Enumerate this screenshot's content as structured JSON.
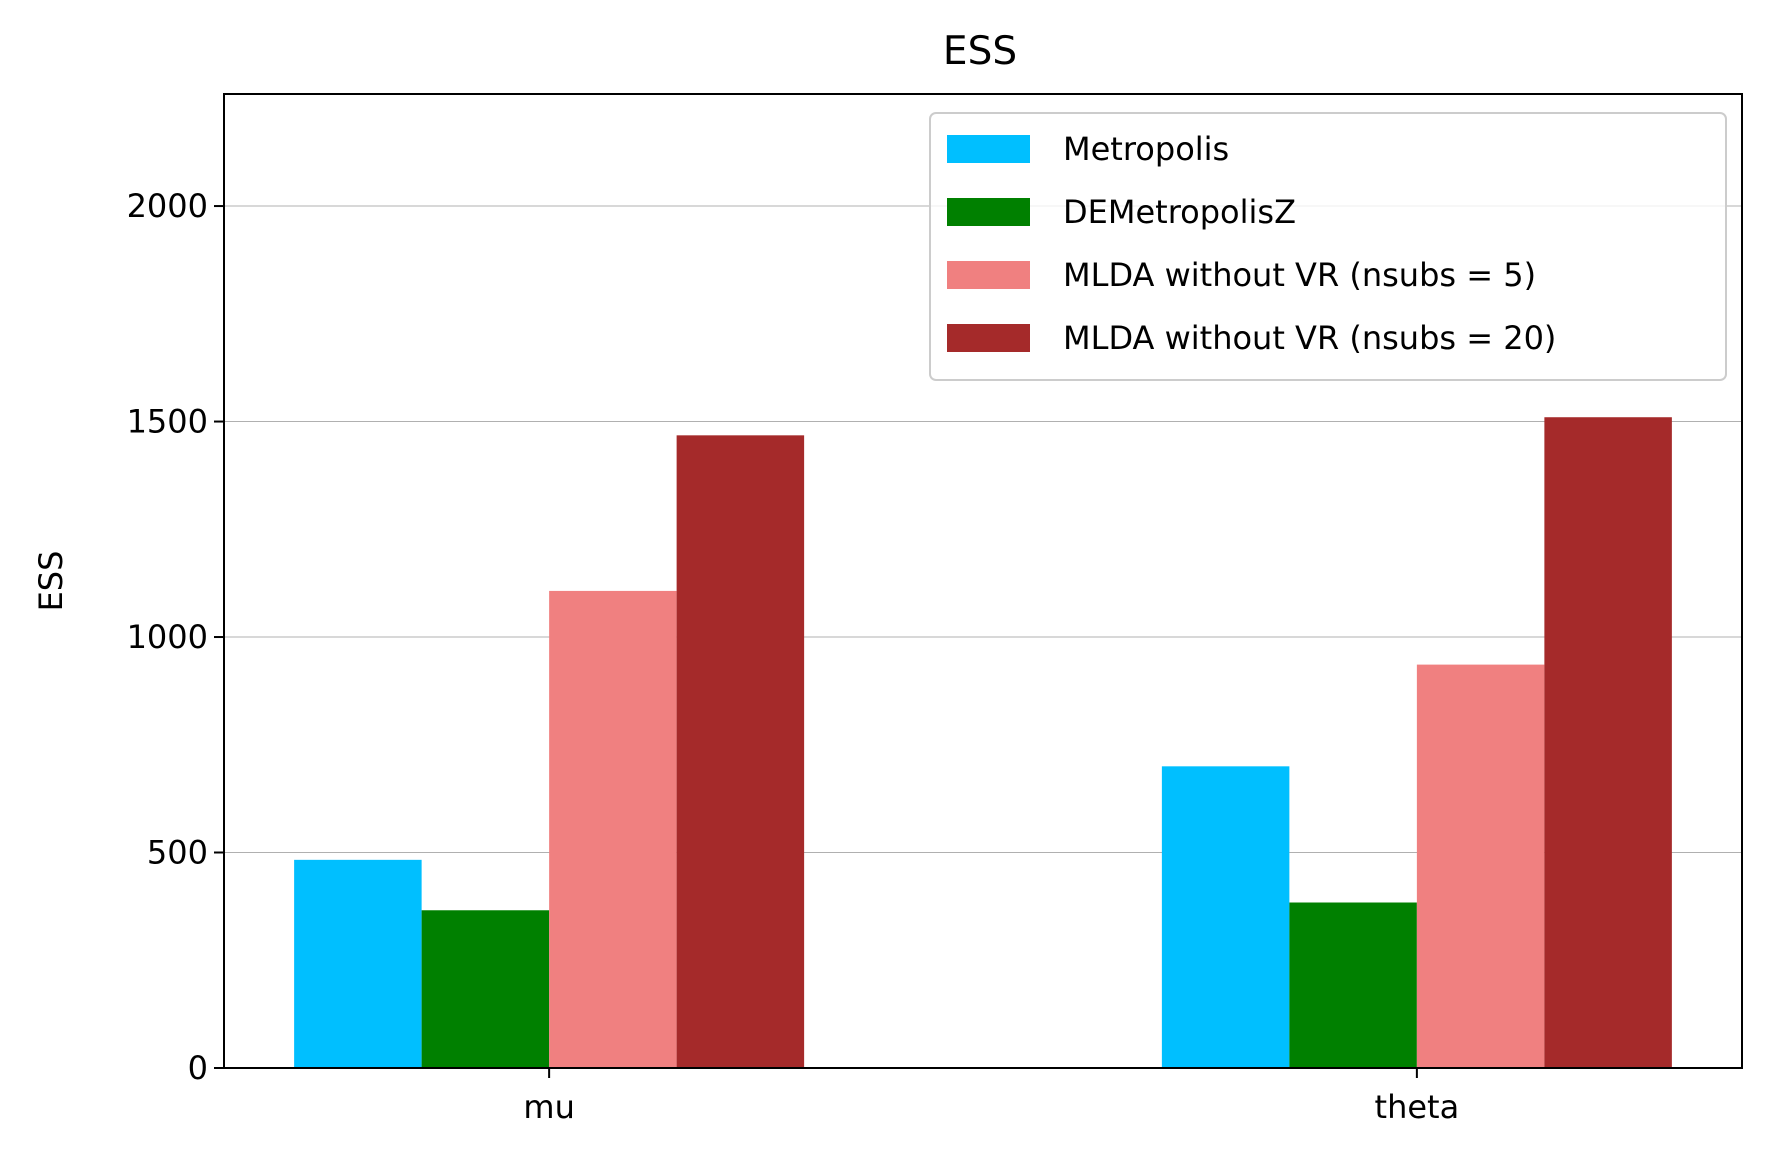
{
  "chart_data": {
    "type": "bar",
    "title": "ESS",
    "xlabel": "",
    "ylabel": "ESS",
    "categories": [
      "mu",
      "theta"
    ],
    "ylim": [
      0,
      2260
    ],
    "yticks": [
      0,
      500,
      1000,
      1500,
      2000
    ],
    "grid": {
      "y": true,
      "x": false
    },
    "legend_position": "top-right",
    "series": [
      {
        "name": "Metropolis",
        "color": "#00BFFF",
        "values": [
          483,
          700
        ]
      },
      {
        "name": "DEMetropolisZ",
        "color": "#008000",
        "values": [
          366,
          384
        ]
      },
      {
        "name": "MLDA without VR (nsubs = 5)",
        "color": "#F08080",
        "values": [
          1107,
          936
        ]
      },
      {
        "name": "MLDA without VR (nsubs = 20)",
        "color": "#A52A2A",
        "values": [
          1468,
          1510
        ]
      }
    ]
  }
}
